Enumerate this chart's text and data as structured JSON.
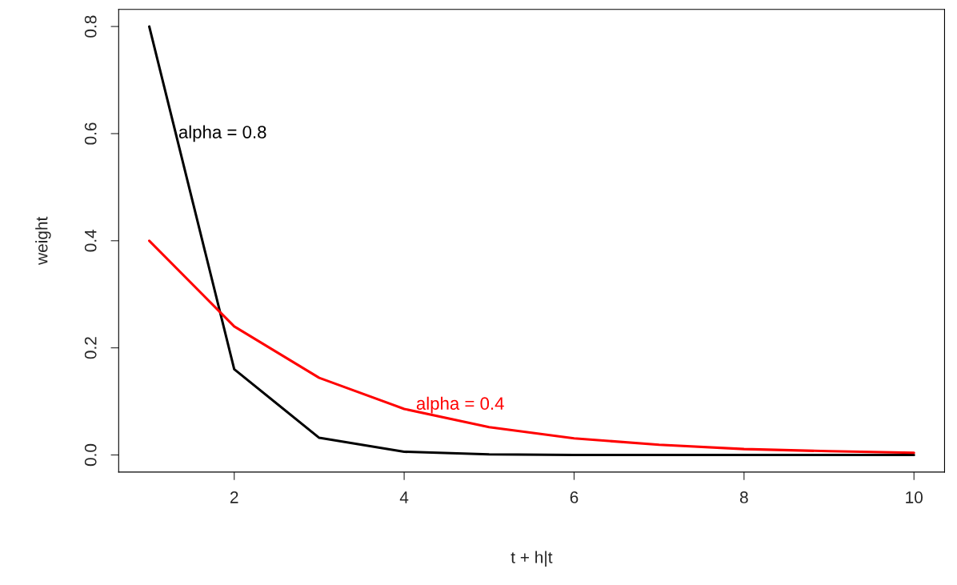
{
  "chart_data": {
    "type": "line",
    "xlabel": "t + h|t",
    "ylabel": "weight",
    "x": [
      1,
      2,
      3,
      4,
      5,
      6,
      7,
      8,
      9,
      10
    ],
    "series": [
      {
        "name": "alpha = 0.8",
        "color": "#000000",
        "values": [
          0.8,
          0.16,
          0.032,
          0.006,
          0.001,
          0.0,
          0.0,
          0.0,
          0.0,
          0.0
        ]
      },
      {
        "name": "alpha = 0.4",
        "color": "#ff0000",
        "values": [
          0.4,
          0.24,
          0.144,
          0.086,
          0.052,
          0.031,
          0.019,
          0.011,
          0.007,
          0.004
        ]
      }
    ],
    "xlim": [
      0.64,
      10.36
    ],
    "ylim": [
      -0.032,
      0.832
    ],
    "xticks": [
      2,
      4,
      6,
      8,
      10
    ],
    "yticks": [
      {
        "value": 0,
        "label": "0.0"
      },
      {
        "value": 0.2,
        "label": "0.2"
      },
      {
        "value": 0.4,
        "label": "0.4"
      },
      {
        "value": 0.6,
        "label": "0.6"
      },
      {
        "value": 0.8,
        "label": "0.8"
      }
    ],
    "grid": false,
    "legend": false,
    "marker": "none",
    "line_style": "solid"
  }
}
